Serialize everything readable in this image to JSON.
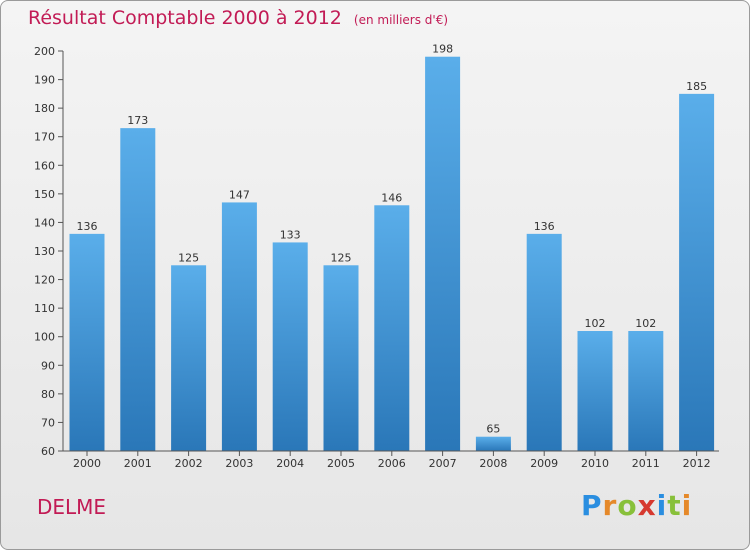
{
  "title": "Résultat Comptable 2000 à 2012",
  "subtitle": "(en milliers d'€)",
  "commune": "DELME",
  "brand": {
    "letters": [
      "P",
      "r",
      "o",
      "x",
      "i",
      "t",
      "i"
    ],
    "colors": [
      "#2a8ee0",
      "#e5892a",
      "#88c03a",
      "#d6392f",
      "#2a8ee0",
      "#88c03a",
      "#e5892a"
    ]
  },
  "colors": {
    "title": "#c21b55",
    "bar_light": "#5aaeea",
    "bar_dark": "#2a77b8",
    "axis": "#555555"
  },
  "chart_data": {
    "type": "bar",
    "title": "Résultat Comptable 2000 à 2012",
    "subtitle": "(en milliers d'€)",
    "categories": [
      "2000",
      "2001",
      "2002",
      "2003",
      "2004",
      "2005",
      "2006",
      "2007",
      "2008",
      "2009",
      "2010",
      "2011",
      "2012"
    ],
    "values": [
      136,
      173,
      125,
      147,
      133,
      125,
      146,
      198,
      65,
      136,
      102,
      102,
      185
    ],
    "xlabel": "",
    "ylabel": "",
    "ylim": [
      60,
      200
    ],
    "yticks": [
      60,
      70,
      80,
      90,
      100,
      110,
      120,
      130,
      140,
      150,
      160,
      170,
      180,
      190,
      200
    ],
    "grid": false,
    "legend": "none"
  }
}
